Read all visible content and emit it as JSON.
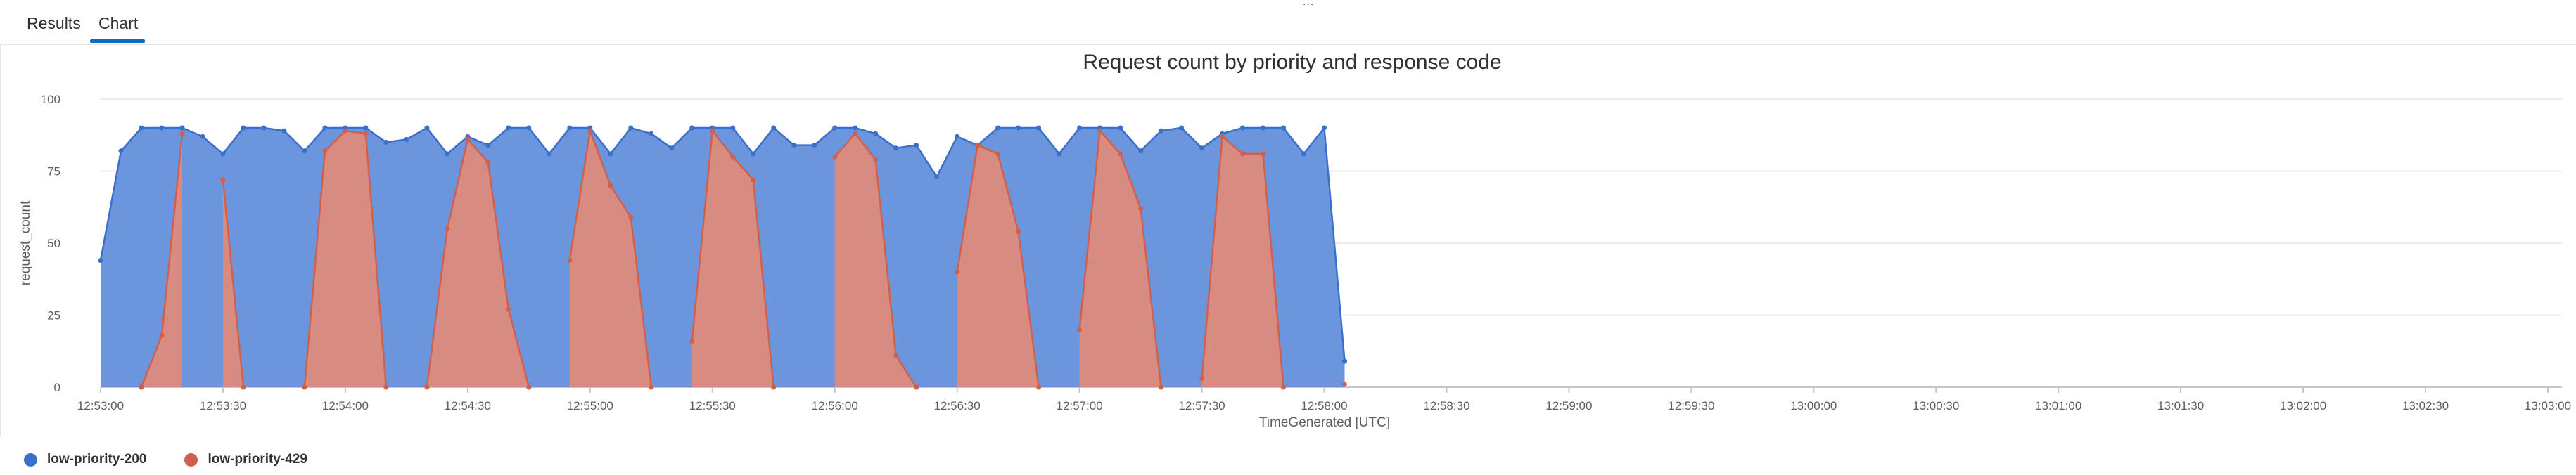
{
  "tabs": [
    {
      "label": "Results"
    },
    {
      "label": "Chart"
    }
  ],
  "overflow_indicator": "...",
  "chart_data": {
    "type": "area",
    "title": "Request count by priority and response code",
    "xlabel": "TimeGenerated [UTC]",
    "ylabel": "request_count",
    "ylim": [
      0,
      100
    ],
    "yticks": [
      0,
      25,
      50,
      75,
      100
    ],
    "xlim": [
      "12:53:00",
      "13:03:00"
    ],
    "xticks": [
      "12:53:00",
      "12:53:30",
      "12:54:00",
      "12:54:30",
      "12:55:00",
      "12:55:30",
      "12:56:00",
      "12:56:30",
      "12:57:00",
      "12:57:30",
      "12:58:00",
      "12:58:30",
      "12:59:00",
      "12:59:30",
      "13:00:00",
      "13:00:30",
      "13:01:00",
      "13:01:30",
      "13:02:00",
      "13:02:30",
      "13:03:00"
    ],
    "grid": "horizontal",
    "legend_position": "bottom-left",
    "series": [
      {
        "name": "low-priority-200",
        "color": "#5b8bd9",
        "stroke": "#3a6fcb",
        "points": [
          [
            "12:53:00",
            44
          ],
          [
            "12:53:05",
            82
          ],
          [
            "12:53:10",
            90
          ],
          [
            "12:53:15",
            90
          ],
          [
            "12:53:20",
            90
          ],
          [
            "12:53:25",
            87
          ],
          [
            "12:53:30",
            81
          ],
          [
            "12:53:35",
            90
          ],
          [
            "12:53:40",
            90
          ],
          [
            "12:53:45",
            89
          ],
          [
            "12:53:50",
            82
          ],
          [
            "12:53:55",
            90
          ],
          [
            "12:54:00",
            90
          ],
          [
            "12:54:05",
            90
          ],
          [
            "12:54:10",
            85
          ],
          [
            "12:54:15",
            86
          ],
          [
            "12:54:20",
            90
          ],
          [
            "12:54:25",
            81
          ],
          [
            "12:54:30",
            87
          ],
          [
            "12:54:35",
            84
          ],
          [
            "12:54:40",
            90
          ],
          [
            "12:54:45",
            90
          ],
          [
            "12:54:50",
            81
          ],
          [
            "12:54:55",
            90
          ],
          [
            "12:55:00",
            90
          ],
          [
            "12:55:05",
            81
          ],
          [
            "12:55:10",
            90
          ],
          [
            "12:55:15",
            88
          ],
          [
            "12:55:20",
            83
          ],
          [
            "12:55:25",
            90
          ],
          [
            "12:55:30",
            90
          ],
          [
            "12:55:35",
            90
          ],
          [
            "12:55:40",
            81
          ],
          [
            "12:55:45",
            90
          ],
          [
            "12:55:50",
            84
          ],
          [
            "12:55:55",
            84
          ],
          [
            "12:56:00",
            90
          ],
          [
            "12:56:05",
            90
          ],
          [
            "12:56:10",
            88
          ],
          [
            "12:56:15",
            83
          ],
          [
            "12:56:20",
            84
          ],
          [
            "12:56:25",
            73
          ],
          [
            "12:56:30",
            87
          ],
          [
            "12:56:35",
            84
          ],
          [
            "12:56:40",
            90
          ],
          [
            "12:56:45",
            90
          ],
          [
            "12:56:50",
            90
          ],
          [
            "12:56:55",
            81
          ],
          [
            "12:57:00",
            90
          ],
          [
            "12:57:05",
            90
          ],
          [
            "12:57:10",
            90
          ],
          [
            "12:57:15",
            82
          ],
          [
            "12:57:20",
            89
          ],
          [
            "12:57:25",
            90
          ],
          [
            "12:57:30",
            83
          ],
          [
            "12:57:35",
            88
          ],
          [
            "12:57:40",
            90
          ],
          [
            "12:57:45",
            90
          ],
          [
            "12:57:50",
            90
          ],
          [
            "12:57:55",
            81
          ],
          [
            "12:58:00",
            90
          ],
          [
            "12:58:05",
            9
          ]
        ]
      },
      {
        "name": "low-priority-429",
        "color": "#e28a78",
        "stroke": "#d0604c",
        "points": [
          [
            "12:53:00",
            null
          ],
          [
            "12:53:05",
            null
          ],
          [
            "12:53:10",
            0
          ],
          [
            "12:53:15",
            18
          ],
          [
            "12:53:20",
            88
          ],
          [
            "12:53:25",
            null
          ],
          [
            "12:53:30",
            72
          ],
          [
            "12:53:35",
            0
          ],
          [
            "12:53:40",
            null
          ],
          [
            "12:53:45",
            null
          ],
          [
            "12:53:50",
            0
          ],
          [
            "12:53:55",
            82
          ],
          [
            "12:54:00",
            89
          ],
          [
            "12:54:05",
            88
          ],
          [
            "12:54:10",
            0
          ],
          [
            "12:54:15",
            null
          ],
          [
            "12:54:20",
            0
          ],
          [
            "12:54:25",
            55
          ],
          [
            "12:54:30",
            86
          ],
          [
            "12:54:35",
            78
          ],
          [
            "12:54:40",
            27
          ],
          [
            "12:54:45",
            0
          ],
          [
            "12:54:50",
            null
          ],
          [
            "12:54:55",
            44
          ],
          [
            "12:55:00",
            89
          ],
          [
            "12:55:05",
            70
          ],
          [
            "12:55:10",
            59
          ],
          [
            "12:55:15",
            0
          ],
          [
            "12:55:20",
            null
          ],
          [
            "12:55:25",
            16
          ],
          [
            "12:55:30",
            89
          ],
          [
            "12:55:35",
            80
          ],
          [
            "12:55:40",
            72
          ],
          [
            "12:55:45",
            0
          ],
          [
            "12:55:50",
            null
          ],
          [
            "12:55:55",
            null
          ],
          [
            "12:56:00",
            80
          ],
          [
            "12:56:05",
            88
          ],
          [
            "12:56:10",
            79
          ],
          [
            "12:56:15",
            11
          ],
          [
            "12:56:20",
            0
          ],
          [
            "12:56:25",
            null
          ],
          [
            "12:56:30",
            40
          ],
          [
            "12:56:35",
            84
          ],
          [
            "12:56:40",
            81
          ],
          [
            "12:56:45",
            54
          ],
          [
            "12:56:50",
            0
          ],
          [
            "12:56:55",
            null
          ],
          [
            "12:57:00",
            20
          ],
          [
            "12:57:05",
            89
          ],
          [
            "12:57:10",
            81
          ],
          [
            "12:57:15",
            62
          ],
          [
            "12:57:20",
            0
          ],
          [
            "12:57:25",
            null
          ],
          [
            "12:57:30",
            3
          ],
          [
            "12:57:35",
            87
          ],
          [
            "12:57:40",
            81
          ],
          [
            "12:57:45",
            81
          ],
          [
            "12:57:50",
            0
          ],
          [
            "12:57:55",
            null
          ],
          [
            "12:58:00",
            null
          ],
          [
            "12:58:05",
            1
          ]
        ]
      }
    ]
  }
}
